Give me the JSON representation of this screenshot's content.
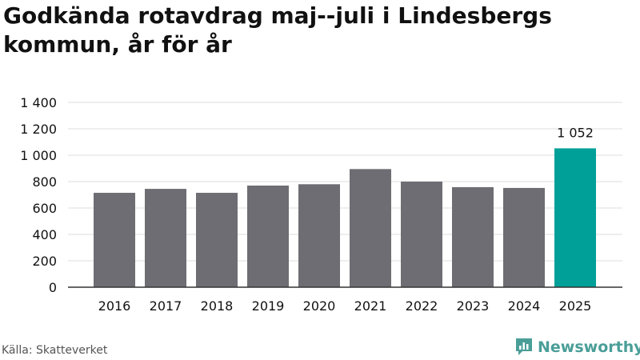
{
  "header": {
    "title": "Godkända rotavdrag maj--juli i Lindesbergs kommun, år för år"
  },
  "footer": {
    "source": "Källa: Skatteverket",
    "brand": "Newsworthy",
    "brand_icon": "newsworthy-logo-icon"
  },
  "colors": {
    "bar": "#6e6d73",
    "highlight": "#00a098",
    "grid": "#dddddd",
    "axis": "#333333",
    "brand": "#4a9e98"
  },
  "chart_data": {
    "type": "bar",
    "categories": [
      "2016",
      "2017",
      "2018",
      "2019",
      "2020",
      "2021",
      "2022",
      "2023",
      "2024",
      "2025"
    ],
    "values": [
      715,
      745,
      715,
      770,
      780,
      895,
      800,
      758,
      752,
      1052
    ],
    "highlight_index": 9,
    "data_labels": [
      {
        "index": 9,
        "text": "1 052"
      }
    ],
    "y_ticks": [
      0,
      200,
      400,
      600,
      800,
      1000,
      1200,
      1400
    ],
    "y_tick_labels": [
      "0",
      "200",
      "400",
      "600",
      "800",
      "1 000",
      "1 200",
      "1 400"
    ],
    "ylim": [
      0,
      1400
    ],
    "grid": true,
    "legend": "none",
    "title": "Godkända rotavdrag maj--juli i Lindesbergs kommun, år för år",
    "xlabel": "",
    "ylabel": ""
  }
}
